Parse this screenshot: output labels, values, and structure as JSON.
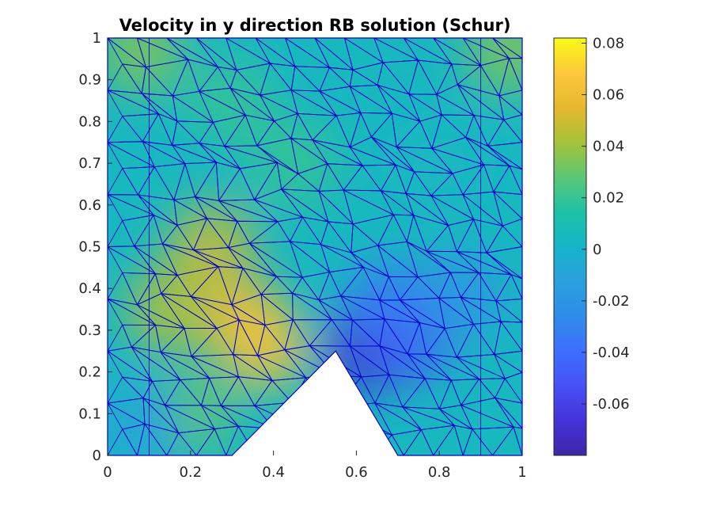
{
  "chart_data": {
    "type": "heatmap",
    "title": "Velocity in y direction RB solution (Schur)",
    "xlabel": "",
    "ylabel": "",
    "xlim": [
      0,
      1
    ],
    "ylim": [
      0,
      1
    ],
    "x_ticks": [
      "0",
      "0.2",
      "0.4",
      "0.6",
      "0.8",
      "1"
    ],
    "y_ticks": [
      "0",
      "0.1",
      "0.2",
      "0.3",
      "0.4",
      "0.5",
      "0.6",
      "0.7",
      "0.8",
      "0.9",
      "1"
    ],
    "colorbar": {
      "range": [
        -0.08,
        0.082
      ],
      "ticks": [
        "0.08",
        "0.06",
        "0.04",
        "0.02",
        "0",
        "-0.02",
        "-0.04",
        "-0.06"
      ],
      "colormap": "parula"
    },
    "domain_hole": {
      "shape": "triangle",
      "vertices": [
        [
          0.3,
          0
        ],
        [
          0.55,
          0.25
        ],
        [
          0.7,
          0
        ]
      ]
    },
    "field_features": [
      {
        "x": 0.32,
        "y": 0.33,
        "value": 0.06
      },
      {
        "x": 0.25,
        "y": 0.5,
        "value": 0.05
      },
      {
        "x": 0.38,
        "y": 0.26,
        "value": 0.065
      },
      {
        "x": 0.15,
        "y": 0.35,
        "value": 0.045
      },
      {
        "x": 0.62,
        "y": 0.25,
        "value": -0.07
      },
      {
        "x": 0.72,
        "y": 0.28,
        "value": -0.05
      },
      {
        "x": 0.68,
        "y": 0.36,
        "value": -0.035
      },
      {
        "x": 0.85,
        "y": 0.38,
        "value": -0.02
      },
      {
        "x": 0.2,
        "y": 0.1,
        "value": 0.03
      },
      {
        "x": 0.08,
        "y": 0.07,
        "value": -0.01
      },
      {
        "x": 0.3,
        "y": 0.85,
        "value": 0.02
      },
      {
        "x": 0.8,
        "y": 0.7,
        "value": 0.005
      },
      {
        "x": 0.45,
        "y": 0.7,
        "value": 0.02
      },
      {
        "x": 0.97,
        "y": 0.97,
        "value": 0.035
      },
      {
        "x": 0.08,
        "y": 0.97,
        "value": 0.035
      }
    ],
    "mesh_color": "#0000cc",
    "grid": false
  }
}
